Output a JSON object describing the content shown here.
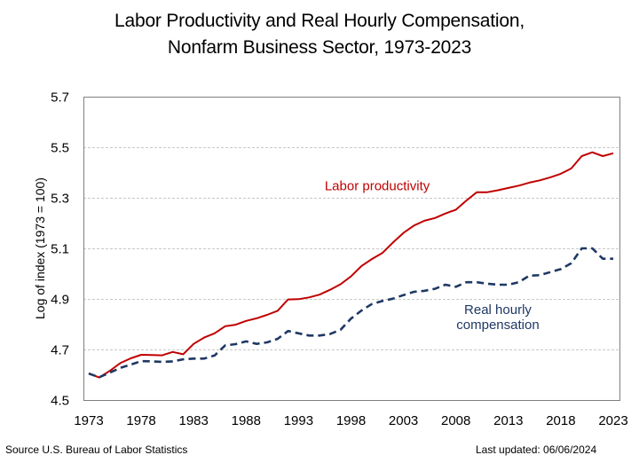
{
  "chart_data": {
    "type": "line",
    "title": "Labor Productivity and Real Hourly Compensation,",
    "subtitle": "Nonfarm Business Sector, 1973-2023",
    "xlabel": "",
    "ylabel": "Log of index (1973 = 100)",
    "ylim": [
      4.5,
      5.7
    ],
    "yticks": [
      "4.5",
      "4.7",
      "4.9",
      "5.1",
      "5.3",
      "5.5",
      "5.7"
    ],
    "xlim": [
      1973,
      2023
    ],
    "xticks": [
      "1973",
      "1978",
      "1983",
      "1988",
      "1993",
      "1998",
      "2003",
      "2008",
      "2013",
      "2018",
      "2023"
    ],
    "grid": "horizontal-dashed",
    "x": [
      1973,
      1974,
      1975,
      1976,
      1977,
      1978,
      1979,
      1980,
      1981,
      1982,
      1983,
      1984,
      1985,
      1986,
      1987,
      1988,
      1989,
      1990,
      1991,
      1992,
      1993,
      1994,
      1995,
      1996,
      1997,
      1998,
      1999,
      2000,
      2001,
      2002,
      2003,
      2004,
      2005,
      2006,
      2007,
      2008,
      2009,
      2010,
      2011,
      2012,
      2013,
      2014,
      2015,
      2016,
      2017,
      2018,
      2019,
      2020,
      2021,
      2022,
      2023
    ],
    "series": [
      {
        "name": "Labor productivity",
        "color": "#C00000",
        "style": "solid",
        "values": [
          4.605,
          4.589,
          4.615,
          4.646,
          4.665,
          4.679,
          4.678,
          4.677,
          4.69,
          4.681,
          4.722,
          4.747,
          4.764,
          4.792,
          4.798,
          4.813,
          4.823,
          4.837,
          4.853,
          4.898,
          4.899,
          4.906,
          4.917,
          4.936,
          4.958,
          4.989,
          5.03,
          5.058,
          5.082,
          5.123,
          5.161,
          5.19,
          5.209,
          5.22,
          5.238,
          5.253,
          5.289,
          5.322,
          5.322,
          5.33,
          5.339,
          5.348,
          5.36,
          5.369,
          5.381,
          5.395,
          5.416,
          5.465,
          5.48,
          5.465,
          5.476
        ]
      },
      {
        "name": "Real hourly compensation",
        "color": "#1F3864",
        "style": "dashed",
        "values": [
          4.605,
          4.59,
          4.608,
          4.627,
          4.64,
          4.654,
          4.653,
          4.651,
          4.653,
          4.661,
          4.664,
          4.664,
          4.676,
          4.716,
          4.721,
          4.732,
          4.722,
          4.728,
          4.742,
          4.773,
          4.764,
          4.755,
          4.755,
          4.761,
          4.778,
          4.822,
          4.854,
          4.88,
          4.892,
          4.901,
          4.915,
          4.928,
          4.932,
          4.94,
          4.956,
          4.948,
          4.966,
          4.966,
          4.96,
          4.956,
          4.956,
          4.966,
          4.992,
          4.994,
          5.006,
          5.018,
          5.041,
          5.1,
          5.1,
          5.059,
          5.059
        ]
      }
    ],
    "annotations": [
      {
        "text": "Labor productivity",
        "series": "Labor productivity",
        "anchor_x": 2000.5,
        "anchor_y": 5.33
      },
      {
        "text": "Real hourly",
        "series": "Real hourly compensation",
        "anchor_x": 2012.0,
        "anchor_y": 4.84
      },
      {
        "text": "compensation",
        "series": "Real hourly compensation",
        "anchor_x": 2012.0,
        "anchor_y": 4.78
      }
    ]
  },
  "footer": {
    "source": "Source U.S. Bureau of Labor Statistics",
    "updated": "Last updated: 06/06/2024"
  }
}
